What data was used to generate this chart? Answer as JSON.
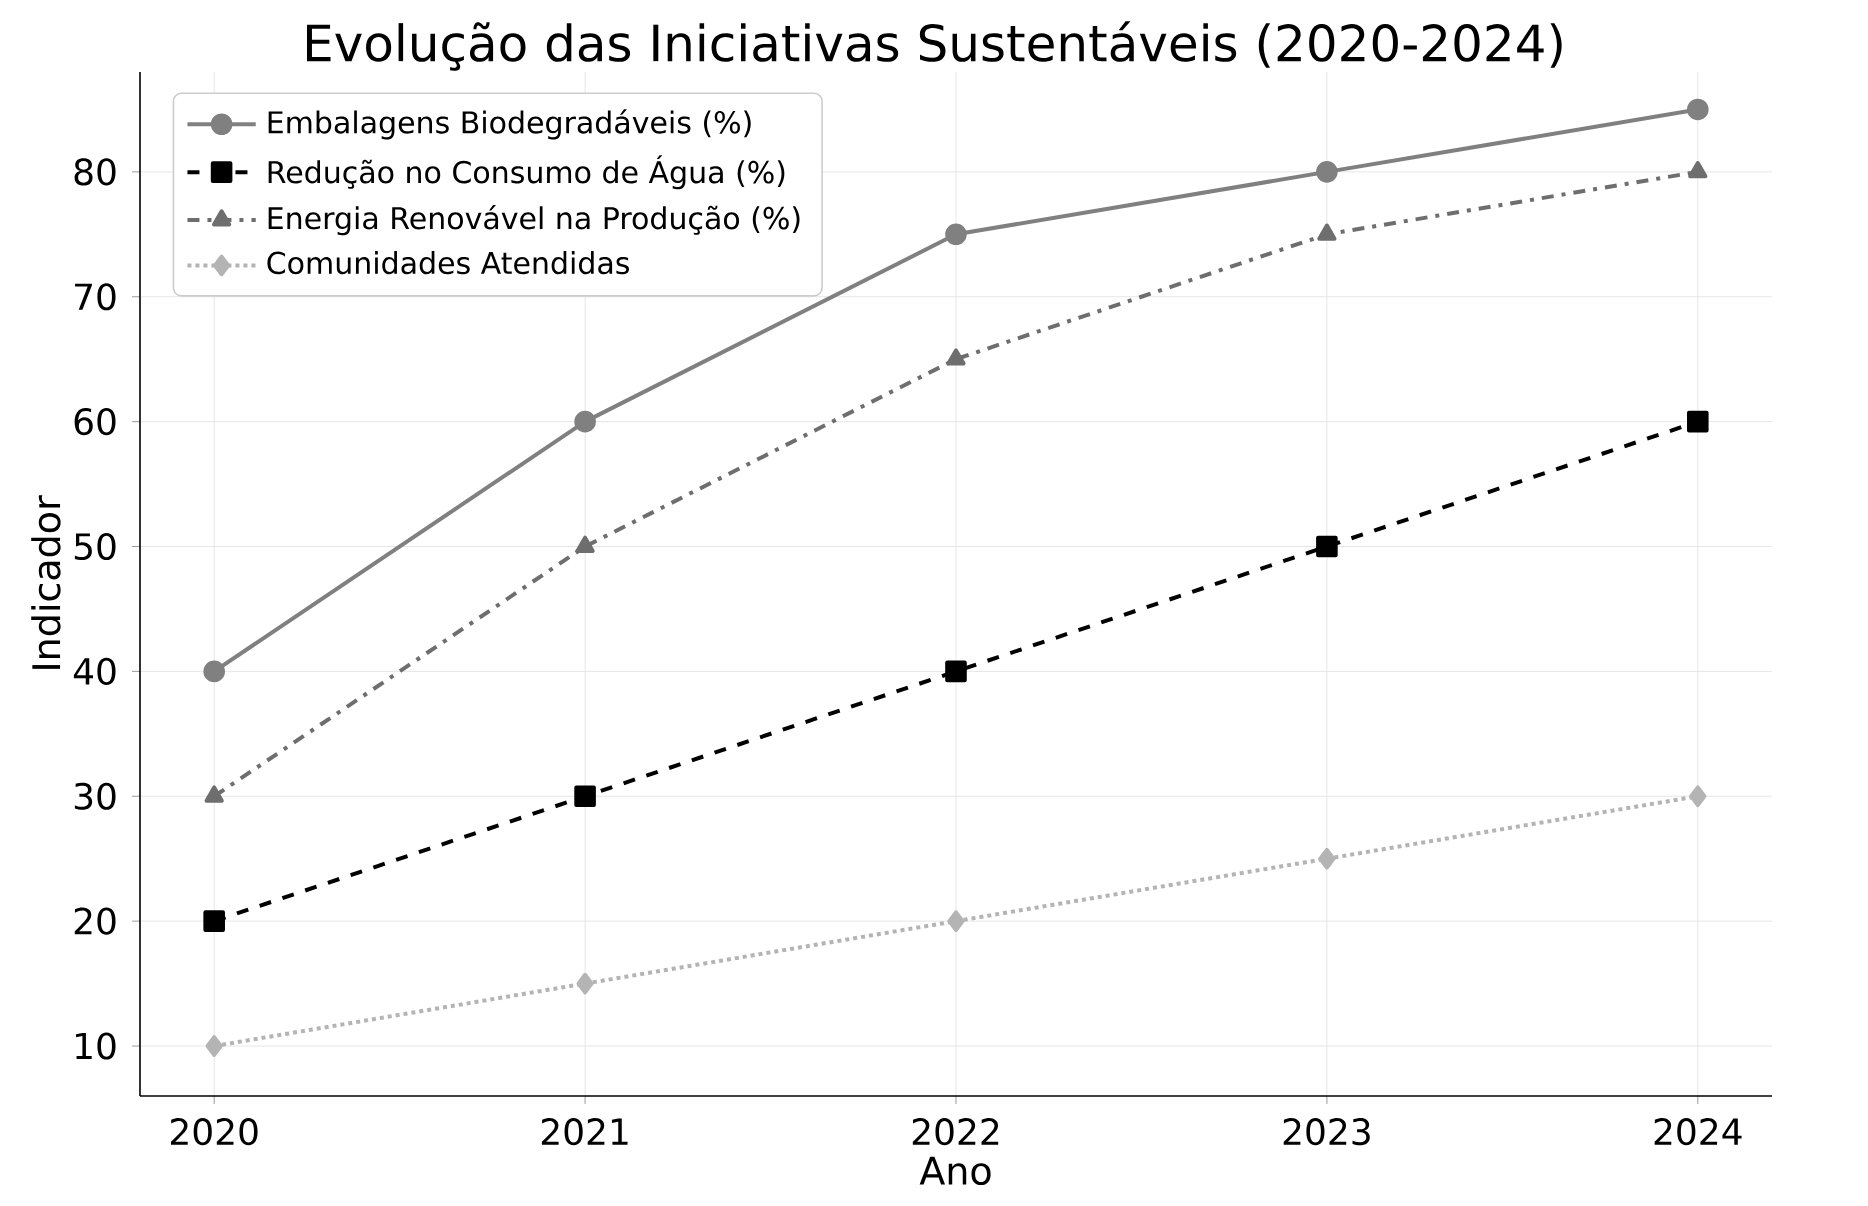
{
  "chart_data": {
    "type": "line",
    "title": "Evolução das Iniciativas Sustentáveis (2020-2024)",
    "xlabel": "Ano",
    "ylabel": "Indicador",
    "x": [
      2020,
      2021,
      2022,
      2023,
      2024
    ],
    "series": [
      {
        "name": "Embalagens Biodegradáveis (%)",
        "color": "#808080",
        "values": [
          40,
          60,
          75,
          80,
          85
        ],
        "marker": "circle",
        "line_style": "solid"
      },
      {
        "name": "Redução no Consumo de Água (%)",
        "color": "#000000",
        "values": [
          20,
          30,
          40,
          50,
          60
        ],
        "marker": "square",
        "line_style": "dashed"
      },
      {
        "name": "Energia Renovável na Produção (%)",
        "color": "#6e6e6e",
        "values": [
          30,
          50,
          65,
          75,
          80
        ],
        "marker": "triangle",
        "line_style": "dashdot"
      },
      {
        "name": "Comunidades Atendidas",
        "color": "#b4b4b4",
        "values": [
          10,
          15,
          20,
          25,
          30
        ],
        "marker": "diamond",
        "line_style": "dotted"
      }
    ],
    "xlim": [
      2019.8,
      2024.2
    ],
    "ylim": [
      6,
      88
    ],
    "xticks": [
      2020,
      2021,
      2022,
      2023,
      2024
    ],
    "yticks": [
      10,
      20,
      30,
      40,
      50,
      60,
      70,
      80
    ],
    "grid": true,
    "legend": "top left"
  }
}
